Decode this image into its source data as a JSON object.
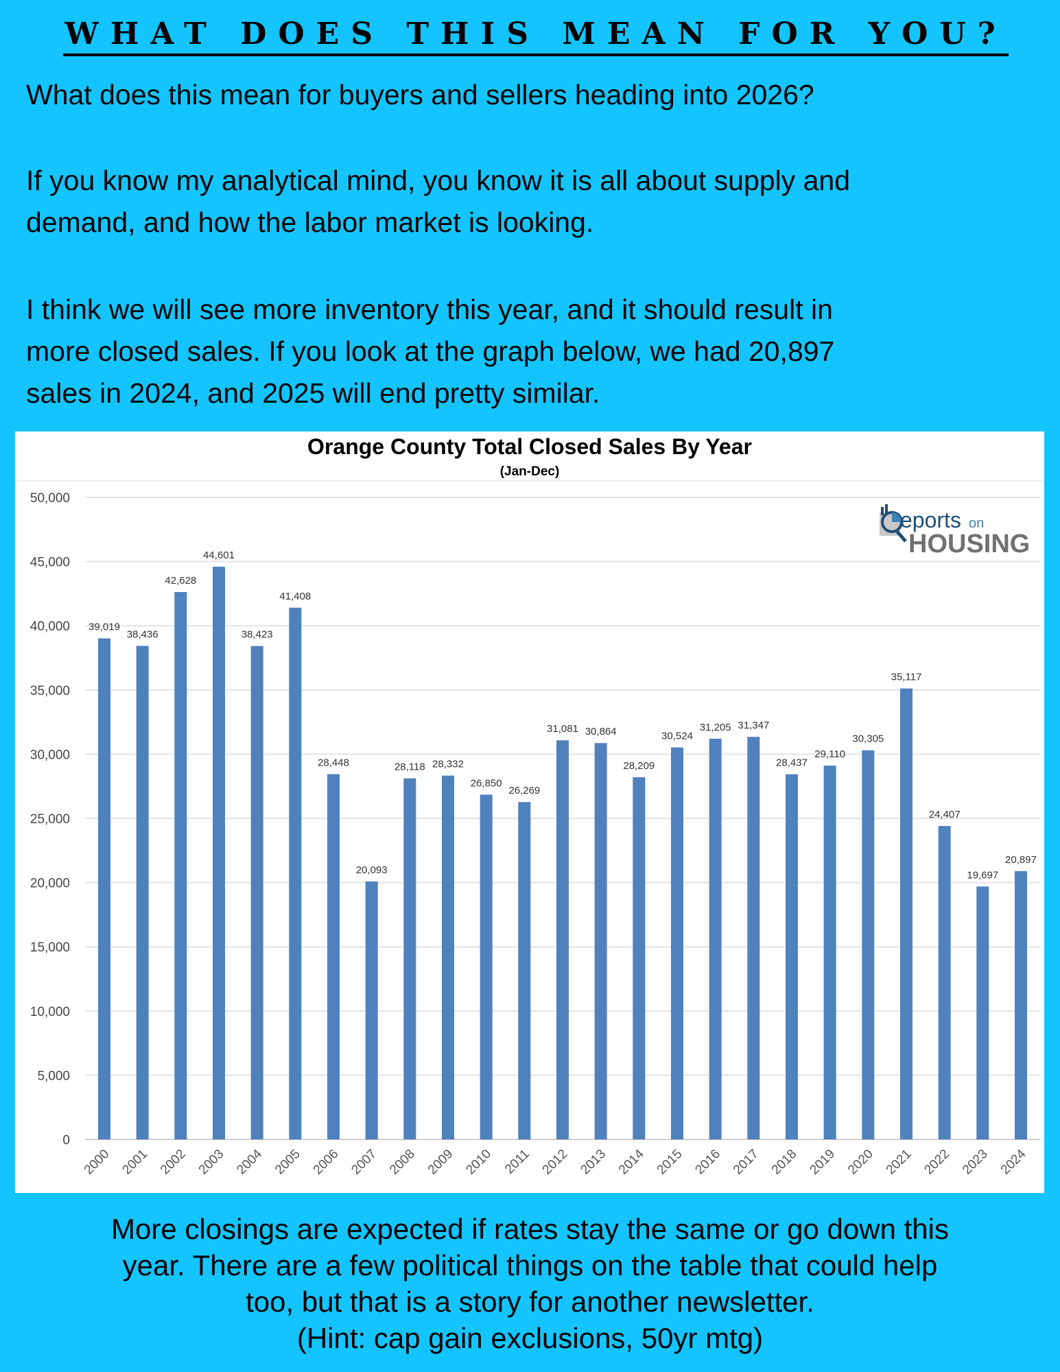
{
  "header": {
    "title": "WHAT DOES THIS MEAN FOR YOU?"
  },
  "intro": {
    "p1": "What does this mean for buyers and sellers heading into 2026?",
    "p2": [
      "If you know my analytical mind, you know it is all about supply and",
      "demand, and how the labor market is looking."
    ],
    "p3": [
      "I think we will see more inventory this year, and it should result in",
      "more closed sales. If you look at the graph below, we had 20,897",
      "sales in 2024, and 2025 will end pretty similar."
    ]
  },
  "logo": {
    "text": "Reports on HOUSING"
  },
  "chart_data": {
    "type": "bar",
    "title": "Orange County Total Closed Sales By Year",
    "subtitle": "(Jan-Dec)",
    "xlabel": "",
    "ylabel": "",
    "ylim": [
      0,
      50000
    ],
    "yticks": [
      "0",
      "5,000",
      "10,000",
      "15,000",
      "20,000",
      "25,000",
      "30,000",
      "35,000",
      "40,000",
      "45,000",
      "50,000"
    ],
    "grid": true,
    "bar_color": "#4f81bd",
    "categories": [
      "2000",
      "2001",
      "2002",
      "2003",
      "2004",
      "2005",
      "2006",
      "2007",
      "2008",
      "2009",
      "2010",
      "2011",
      "2012",
      "2013",
      "2014",
      "2015",
      "2016",
      "2017",
      "2018",
      "2019",
      "2020",
      "2021",
      "2022",
      "2023",
      "2024"
    ],
    "values": [
      39019,
      38436,
      42628,
      44601,
      38423,
      41408,
      28448,
      20093,
      28118,
      28332,
      26850,
      26269,
      31081,
      30864,
      28209,
      30524,
      31205,
      31347,
      28437,
      29110,
      30305,
      35117,
      24407,
      19697,
      20897
    ],
    "data_labels": [
      "39,019",
      "38,436",
      "42,628",
      "44,601",
      "38,423",
      "41,408",
      "28,448",
      "20,093",
      "28,118",
      "28,332",
      "26,850",
      "26,269",
      "31,081",
      "30,864",
      "28,209",
      "30,524",
      "31,205",
      "31,347",
      "28,437",
      "29,110",
      "30,305",
      "35,117",
      "24,407",
      "19,697",
      "20,897"
    ]
  },
  "footer": {
    "lines": [
      "More closings are expected if rates stay the same or go down this",
      "year. There are a few political things on the table that could help",
      "too, but that is a story for another newsletter.",
      "(Hint: cap gain exclusions, 50yr mtg)"
    ]
  },
  "colors": {
    "background": "#14c4ff",
    "bar": "#4f81bd"
  }
}
